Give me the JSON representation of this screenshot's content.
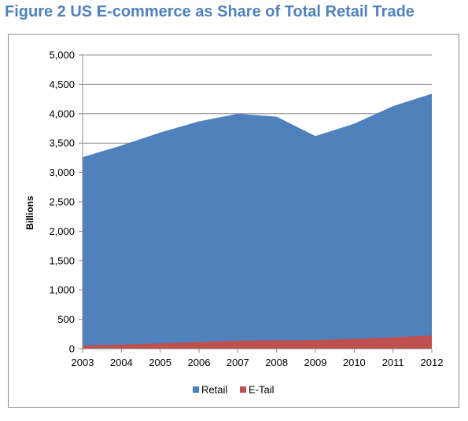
{
  "figure": {
    "title": "Figure 2 US E-commerce as Share of Total Retail Trade"
  },
  "chart_data": {
    "type": "area",
    "title": "Figure 2 US E-commerce as Share of Total Retail Trade",
    "xlabel": "",
    "ylabel": "Billions",
    "categories": [
      "2003",
      "2004",
      "2005",
      "2006",
      "2007",
      "2008",
      "2009",
      "2010",
      "2011",
      "2012"
    ],
    "series": [
      {
        "name": "Retail",
        "color": "#4f81bd",
        "values": [
          3260,
          3460,
          3680,
          3870,
          4000,
          3950,
          3620,
          3830,
          4130,
          4340
        ]
      },
      {
        "name": "E-Tail",
        "color": "#c0504d",
        "values": [
          56,
          72,
          92,
          113,
          137,
          142,
          145,
          169,
          194,
          225
        ]
      }
    ],
    "ylim": [
      0,
      5000
    ],
    "yticks": [
      0,
      500,
      1000,
      1500,
      2000,
      2500,
      3000,
      3500,
      4000,
      4500,
      5000
    ],
    "ytick_labels": [
      "0",
      "500",
      "1,000",
      "1,500",
      "2,000",
      "2,500",
      "3,000",
      "3,500",
      "4,000",
      "4,500",
      "5,000"
    ],
    "grid": true,
    "legend_position": "bottom",
    "stacked": false
  }
}
